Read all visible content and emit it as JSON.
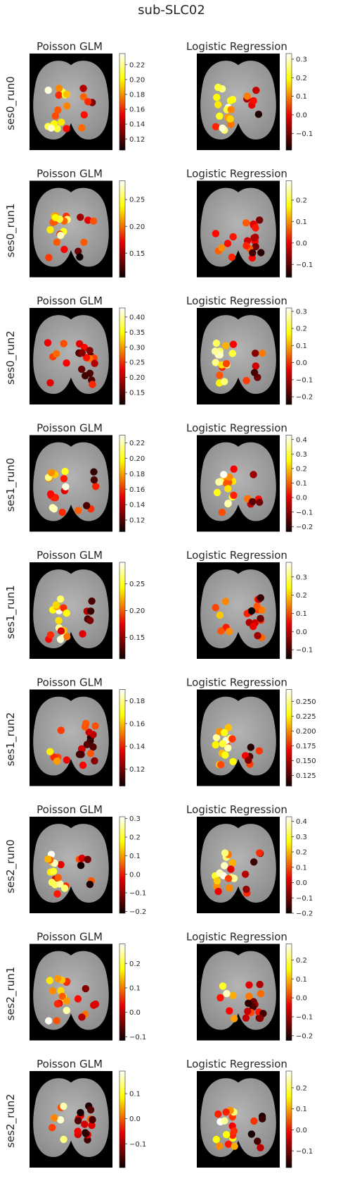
{
  "figure": {
    "title": "sub-SLC02"
  },
  "chart_data": {
    "type": "heatmap",
    "colormap": "hot",
    "background_image": "grayscale dorsal cortex brain map on black",
    "columns": [
      "Poisson GLM",
      "Logistic Regression"
    ],
    "rows": [
      {
        "label": "ses0_run0",
        "panels": [
          {
            "title": "Poisson GLM",
            "clim": [
              0.105,
              0.235
            ],
            "ticks": [
              "0.12",
              "0.14",
              "0.16",
              "0.18",
              "0.20",
              "0.22"
            ],
            "tick_values": [
              0.12,
              0.14,
              0.16,
              0.18,
              0.2,
              0.22
            ]
          },
          {
            "title": "Logistic Regression",
            "clim": [
              -0.19,
              0.33
            ],
            "ticks": [
              "−0.1",
              "0.0",
              "0.1",
              "0.2",
              "0.3"
            ],
            "tick_values": [
              -0.1,
              0.0,
              0.1,
              0.2,
              0.3
            ]
          }
        ]
      },
      {
        "label": "ses0_run1",
        "panels": [
          {
            "title": "Poisson GLM",
            "clim": [
              0.105,
              0.285
            ],
            "ticks": [
              "0.15",
              "0.20",
              "0.25"
            ],
            "tick_values": [
              0.15,
              0.2,
              0.25
            ]
          },
          {
            "title": "Logistic Regression",
            "clim": [
              -0.16,
              0.29
            ],
            "ticks": [
              "−0.1",
              "0.0",
              "0.1",
              "0.2"
            ],
            "tick_values": [
              -0.1,
              0.0,
              0.1,
              0.2
            ]
          }
        ]
      },
      {
        "label": "ses0_run2",
        "panels": [
          {
            "title": "Poisson GLM",
            "clim": [
              0.11,
              0.43
            ],
            "ticks": [
              "0.15",
              "0.20",
              "0.25",
              "0.30",
              "0.35",
              "0.40"
            ],
            "tick_values": [
              0.15,
              0.2,
              0.25,
              0.3,
              0.35,
              0.4
            ]
          },
          {
            "title": "Logistic Regression",
            "clim": [
              -0.245,
              0.32
            ],
            "ticks": [
              "−0.2",
              "−0.1",
              "0.0",
              "0.1",
              "0.2",
              "0.3"
            ],
            "tick_values": [
              -0.2,
              -0.1,
              0.0,
              0.1,
              0.2,
              0.3
            ]
          }
        ]
      },
      {
        "label": "ses1_run0",
        "panels": [
          {
            "title": "Poisson GLM",
            "clim": [
              0.105,
              0.23
            ],
            "ticks": [
              "0.12",
              "0.14",
              "0.16",
              "0.18",
              "0.20",
              "0.22"
            ],
            "tick_values": [
              0.12,
              0.14,
              0.16,
              0.18,
              0.2,
              0.22
            ]
          },
          {
            "title": "Logistic Regression",
            "clim": [
              -0.235,
              0.43
            ],
            "ticks": [
              "−0.2",
              "−0.1",
              "0.0",
              "0.1",
              "0.2",
              "0.3",
              "0.4"
            ],
            "tick_values": [
              -0.2,
              -0.1,
              0.0,
              0.1,
              0.2,
              0.3,
              0.4
            ]
          }
        ]
      },
      {
        "label": "ses1_run1",
        "panels": [
          {
            "title": "Poisson GLM",
            "clim": [
              0.11,
              0.29
            ],
            "ticks": [
              "0.15",
              "0.20",
              "0.25"
            ],
            "tick_values": [
              0.15,
              0.2,
              0.25
            ]
          },
          {
            "title": "Logistic Regression",
            "clim": [
              -0.15,
              0.38
            ],
            "ticks": [
              "−0.1",
              "0.0",
              "0.1",
              "0.2",
              "0.3"
            ],
            "tick_values": [
              -0.1,
              0.0,
              0.1,
              0.2,
              0.3
            ]
          }
        ]
      },
      {
        "label": "ses1_run2",
        "panels": [
          {
            "title": "Poisson GLM",
            "clim": [
              0.105,
              0.19
            ],
            "ticks": [
              "0.12",
              "0.14",
              "0.16",
              "0.18"
            ],
            "tick_values": [
              0.12,
              0.14,
              0.16,
              0.18
            ]
          },
          {
            "title": "Logistic Regression",
            "clim": [
              0.107,
              0.27
            ],
            "ticks": [
              "0.125",
              "0.150",
              "0.175",
              "0.200",
              "0.225",
              "0.250"
            ],
            "tick_values": [
              0.125,
              0.15,
              0.175,
              0.2,
              0.225,
              0.25
            ]
          }
        ]
      },
      {
        "label": "ses2_run0",
        "panels": [
          {
            "title": "Poisson GLM",
            "clim": [
              -0.21,
              0.31
            ],
            "ticks": [
              "−0.2",
              "−0.1",
              "0.0",
              "0.1",
              "0.2",
              "0.3"
            ],
            "tick_values": [
              -0.2,
              -0.1,
              0.0,
              0.1,
              0.2,
              0.3
            ]
          },
          {
            "title": "Logistic Regression",
            "clim": [
              -0.2,
              0.43
            ],
            "ticks": [
              "−0.2",
              "−0.1",
              "0.0",
              "0.1",
              "0.2",
              "0.3",
              "0.4"
            ],
            "tick_values": [
              -0.2,
              -0.1,
              0.0,
              0.1,
              0.2,
              0.3,
              0.4
            ]
          }
        ]
      },
      {
        "label": "ses2_run1",
        "panels": [
          {
            "title": "Poisson GLM",
            "clim": [
              -0.115,
              0.28
            ],
            "ticks": [
              "−0.1",
              "0.0",
              "0.1",
              "0.2"
            ],
            "tick_values": [
              -0.1,
              0.0,
              0.1,
              0.2
            ]
          },
          {
            "title": "Logistic Regression",
            "clim": [
              -0.225,
              0.285
            ],
            "ticks": [
              "−0.2",
              "−0.1",
              "0.0",
              "0.1",
              "0.2"
            ],
            "tick_values": [
              -0.2,
              -0.1,
              0.0,
              0.1,
              0.2
            ]
          }
        ]
      },
      {
        "label": "ses2_run2",
        "panels": [
          {
            "title": "Poisson GLM",
            "clim": [
              -0.195,
              0.19
            ],
            "ticks": [
              "−0.1",
              "0.0",
              "0.1"
            ],
            "tick_values": [
              -0.1,
              0.0,
              0.1
            ]
          },
          {
            "title": "Logistic Regression",
            "clim": [
              -0.18,
              0.28
            ],
            "ticks": [
              "−0.1",
              "0.0",
              "0.1",
              "0.2"
            ],
            "tick_values": [
              -0.1,
              0.0,
              0.1,
              0.2
            ]
          }
        ]
      }
    ]
  }
}
